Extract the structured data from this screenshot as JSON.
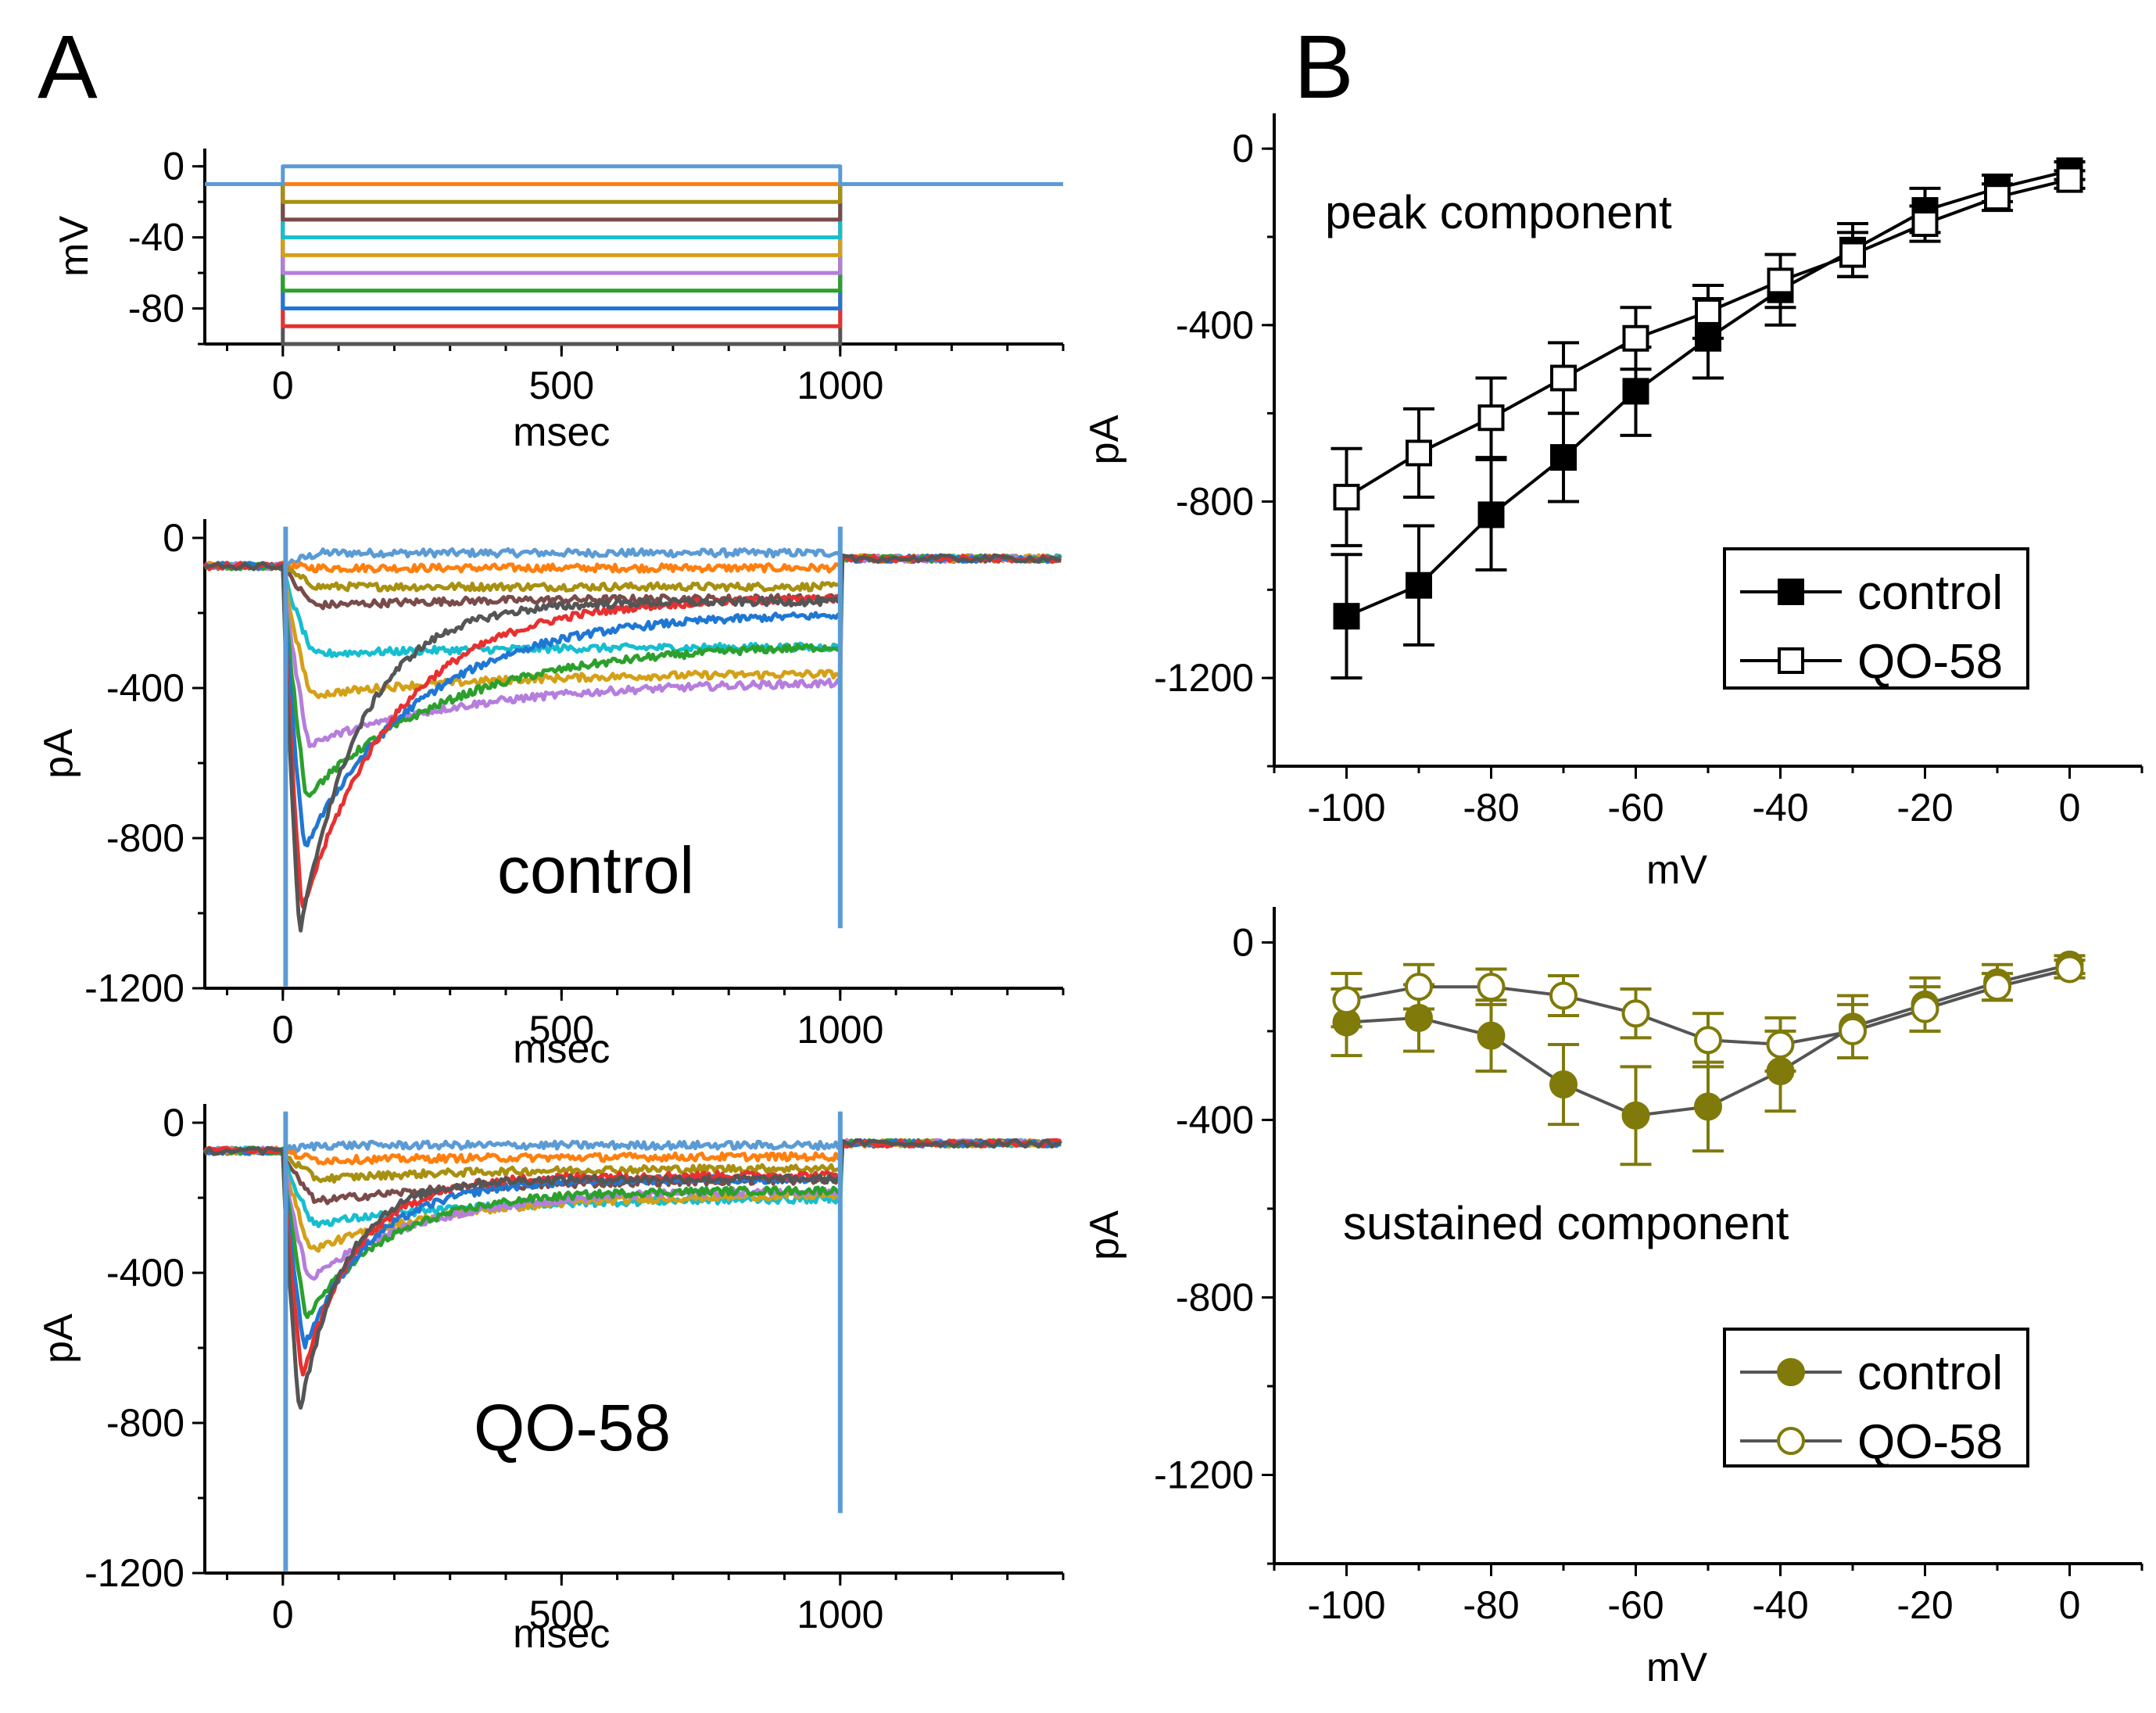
{
  "panel_labels": [
    "A",
    "B"
  ],
  "chart_data": [
    {
      "id": "A-voltage",
      "type": "line",
      "title": "",
      "xlabel": "msec",
      "ylabel": "mV",
      "xlim": [
        -140,
        1400
      ],
      "ylim": [
        -100,
        10
      ],
      "xticks": [
        "0",
        "500",
        "1000"
      ],
      "yticks": [
        "0",
        "-40",
        "-80"
      ],
      "holding_mV": -10,
      "pulse_ms": [
        0,
        1000
      ],
      "step_levels_mV": [
        0,
        -10,
        -20,
        -30,
        -40,
        -50,
        -60,
        -70,
        -80,
        -90,
        -100
      ],
      "colors": [
        "#5b9bd5",
        "#ff7f0e",
        "#a89010",
        "#7a4b4b",
        "#17becf",
        "#d4a017",
        "#b57edc",
        "#2ca02c",
        "#1f77d4",
        "#e83030",
        "#555555"
      ]
    },
    {
      "id": "A-control",
      "type": "line",
      "annotation": "control",
      "xlabel": "msec",
      "ylabel": "pA",
      "xlim": [
        -140,
        1400
      ],
      "ylim": [
        -1200,
        50
      ],
      "xticks": [
        "0",
        "500",
        "1000"
      ],
      "yticks": [
        "0",
        "-400",
        "-800",
        "-1200"
      ],
      "series": [
        {
          "mV": -100,
          "color": "#555555",
          "peak_pA": -1060,
          "end_pA": -170,
          "tau_ms": 110
        },
        {
          "mV": -90,
          "color": "#e83030",
          "peak_pA": -1000,
          "end_pA": -160,
          "tau_ms": 170
        },
        {
          "mV": -80,
          "color": "#1f77d4",
          "peak_pA": -830,
          "end_pA": -200,
          "tau_ms": 210
        },
        {
          "mV": -70,
          "color": "#2ca02c",
          "peak_pA": -690,
          "end_pA": -280,
          "tau_ms": 260
        },
        {
          "mV": -60,
          "color": "#b57edc",
          "peak_pA": -550,
          "end_pA": -380,
          "tau_ms": 300
        },
        {
          "mV": -50,
          "color": "#d4a017",
          "peak_pA": -420,
          "end_pA": -360,
          "tau_ms": 300
        },
        {
          "mV": -40,
          "color": "#17becf",
          "peak_pA": -310,
          "end_pA": -290,
          "tau_ms": 300
        },
        {
          "mV": -30,
          "color": "#7a4b4b",
          "peak_pA": -180,
          "end_pA": -160,
          "tau_ms": 300
        },
        {
          "mV": -20,
          "color": "#a89010",
          "peak_pA": -130,
          "end_pA": -130,
          "tau_ms": 300
        },
        {
          "mV": -10,
          "color": "#ff7f0e",
          "peak_pA": -80,
          "end_pA": -80,
          "tau_ms": 300
        },
        {
          "mV": 0,
          "color": "#5b9bd5",
          "peak_pA": -40,
          "end_pA": -40,
          "tau_ms": 300
        }
      ]
    },
    {
      "id": "A-QO58",
      "type": "line",
      "annotation": "QO-58",
      "xlabel": "msec",
      "ylabel": "pA",
      "xlim": [
        -140,
        1400
      ],
      "ylim": [
        -1200,
        50
      ],
      "xticks": [
        "0",
        "500",
        "1000"
      ],
      "yticks": [
        "0",
        "-400",
        "-800",
        "-1200"
      ],
      "series": [
        {
          "mV": -100,
          "color": "#555555",
          "peak_pA": -780,
          "end_pA": -150,
          "tau_ms": 80
        },
        {
          "mV": -90,
          "color": "#e83030",
          "peak_pA": -680,
          "end_pA": -140,
          "tau_ms": 100
        },
        {
          "mV": -80,
          "color": "#1f77d4",
          "peak_pA": -600,
          "end_pA": -150,
          "tau_ms": 120
        },
        {
          "mV": -70,
          "color": "#2ca02c",
          "peak_pA": -520,
          "end_pA": -180,
          "tau_ms": 150
        },
        {
          "mV": -60,
          "color": "#b57edc",
          "peak_pA": -420,
          "end_pA": -180,
          "tau_ms": 200
        },
        {
          "mV": -50,
          "color": "#d4a017",
          "peak_pA": -340,
          "end_pA": -190,
          "tau_ms": 250
        },
        {
          "mV": -40,
          "color": "#17becf",
          "peak_pA": -270,
          "end_pA": -200,
          "tau_ms": 300
        },
        {
          "mV": -30,
          "color": "#7a4b4b",
          "peak_pA": -210,
          "end_pA": -150,
          "tau_ms": 300
        },
        {
          "mV": -20,
          "color": "#a89010",
          "peak_pA": -150,
          "end_pA": -120,
          "tau_ms": 300
        },
        {
          "mV": -10,
          "color": "#ff7f0e",
          "peak_pA": -100,
          "end_pA": -90,
          "tau_ms": 300
        },
        {
          "mV": 0,
          "color": "#5b9bd5",
          "peak_pA": -60,
          "end_pA": -60,
          "tau_ms": 300
        }
      ]
    },
    {
      "id": "B-peak",
      "type": "scatter",
      "annotation": "peak component",
      "xlabel": "mV",
      "ylabel": "pA",
      "xlim": [
        -110,
        10
      ],
      "ylim": [
        -1400,
        80
      ],
      "xticks": [
        "-100",
        "-80",
        "-60",
        "-40",
        "-20",
        "0"
      ],
      "yticks": [
        "0",
        "-400",
        "-800",
        "-1200"
      ],
      "x": [
        -100,
        -90,
        -80,
        -70,
        -60,
        -50,
        -40,
        -30,
        -20,
        -10,
        0
      ],
      "color": "#000000",
      "series": [
        {
          "name": "control",
          "marker": "filled-square",
          "values": [
            -1060,
            -990,
            -830,
            -700,
            -550,
            -430,
            -320,
            -230,
            -140,
            -90,
            -50
          ],
          "err": [
            140,
            135,
            125,
            100,
            100,
            90,
            80,
            60,
            50,
            30,
            20
          ]
        },
        {
          "name": "QO-58",
          "marker": "open-square",
          "values": [
            -790,
            -690,
            -610,
            -520,
            -430,
            -370,
            -300,
            -240,
            -170,
            -110,
            -70
          ],
          "err": [
            110,
            100,
            90,
            80,
            70,
            60,
            60,
            50,
            40,
            30,
            20
          ]
        }
      ]
    },
    {
      "id": "B-sustained",
      "type": "scatter",
      "annotation": "sustained component",
      "xlabel": "mV",
      "ylabel": "pA",
      "xlim": [
        -110,
        10
      ],
      "ylim": [
        -1400,
        80
      ],
      "xticks": [
        "-100",
        "-80",
        "-60",
        "-40",
        "-20",
        "0"
      ],
      "yticks": [
        "0",
        "-400",
        "-800",
        "-1200"
      ],
      "x": [
        -100,
        -90,
        -80,
        -70,
        -60,
        -50,
        -40,
        -30,
        -20,
        -10,
        0
      ],
      "color": "#7f7a0a",
      "series": [
        {
          "name": "control",
          "marker": "filled-circle",
          "values": [
            -180,
            -170,
            -210,
            -320,
            -390,
            -370,
            -290,
            -190,
            -140,
            -90,
            -50
          ],
          "err": [
            75,
            75,
            80,
            90,
            110,
            100,
            90,
            70,
            60,
            40,
            20
          ]
        },
        {
          "name": "QO-58",
          "marker": "open-circle",
          "values": [
            -130,
            -100,
            -100,
            -120,
            -160,
            -220,
            -230,
            -200,
            -150,
            -100,
            -60
          ],
          "err": [
            60,
            50,
            40,
            45,
            55,
            60,
            60,
            60,
            50,
            30,
            20
          ]
        }
      ]
    }
  ]
}
